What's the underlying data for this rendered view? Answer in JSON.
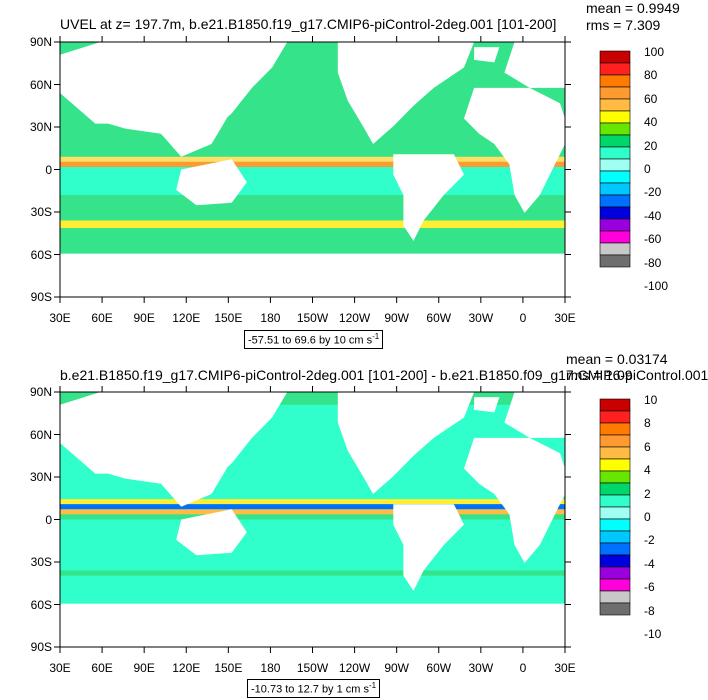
{
  "panels": [
    {
      "title": "UVEL at z= 197.7m, b.e21.B1850.f19_g17.CMIP6-piControl-2deg.001 [101-200]",
      "mean": "mean = 0.9949",
      "rms": "rms = 7.309",
      "range_text": "-57.51 to 69.6 by 10 cm s",
      "range_unit_exp": "-1",
      "colorbar_labels": [
        "100",
        "80",
        "60",
        "40",
        "20",
        "0",
        "-20",
        "-40",
        "-60",
        "-80",
        "-100"
      ]
    },
    {
      "title": "b.e21.B1850.f19_g17.CMIP6-piControl-2deg.001 [101-200] - b.e21.B1850.f09_g17.CMIP6-piControl.001",
      "mean": "mean = 0.03174",
      "rms": "rms = 1.09",
      "range_text": "-10.73 to 12.7 by 1 cm s",
      "range_unit_exp": "-1",
      "colorbar_labels": [
        "10",
        "8",
        "6",
        "4",
        "2",
        "0",
        "-2",
        "-4",
        "-6",
        "-8",
        "-10"
      ]
    }
  ],
  "lat_labels": [
    "90N",
    "60N",
    "30N",
    "0",
    "30S",
    "60S",
    "90S"
  ],
  "lon_labels": [
    "30E",
    "60E",
    "90E",
    "120E",
    "150E",
    "180",
    "150W",
    "120W",
    "90W",
    "60W",
    "30W",
    "0",
    "30E"
  ],
  "colorbar_colors": [
    "#c80000",
    "#ff2020",
    "#ff7a00",
    "#ff9a30",
    "#ffbb44",
    "#ffff00",
    "#66e600",
    "#00d66a",
    "#30ffcc",
    "#9ffff0",
    "#00ffff",
    "#00c8ff",
    "#0070ff",
    "#0000dd",
    "#9a00dd",
    "#ff00dd",
    "#c8c8c8",
    "#6e6e6e"
  ]
}
